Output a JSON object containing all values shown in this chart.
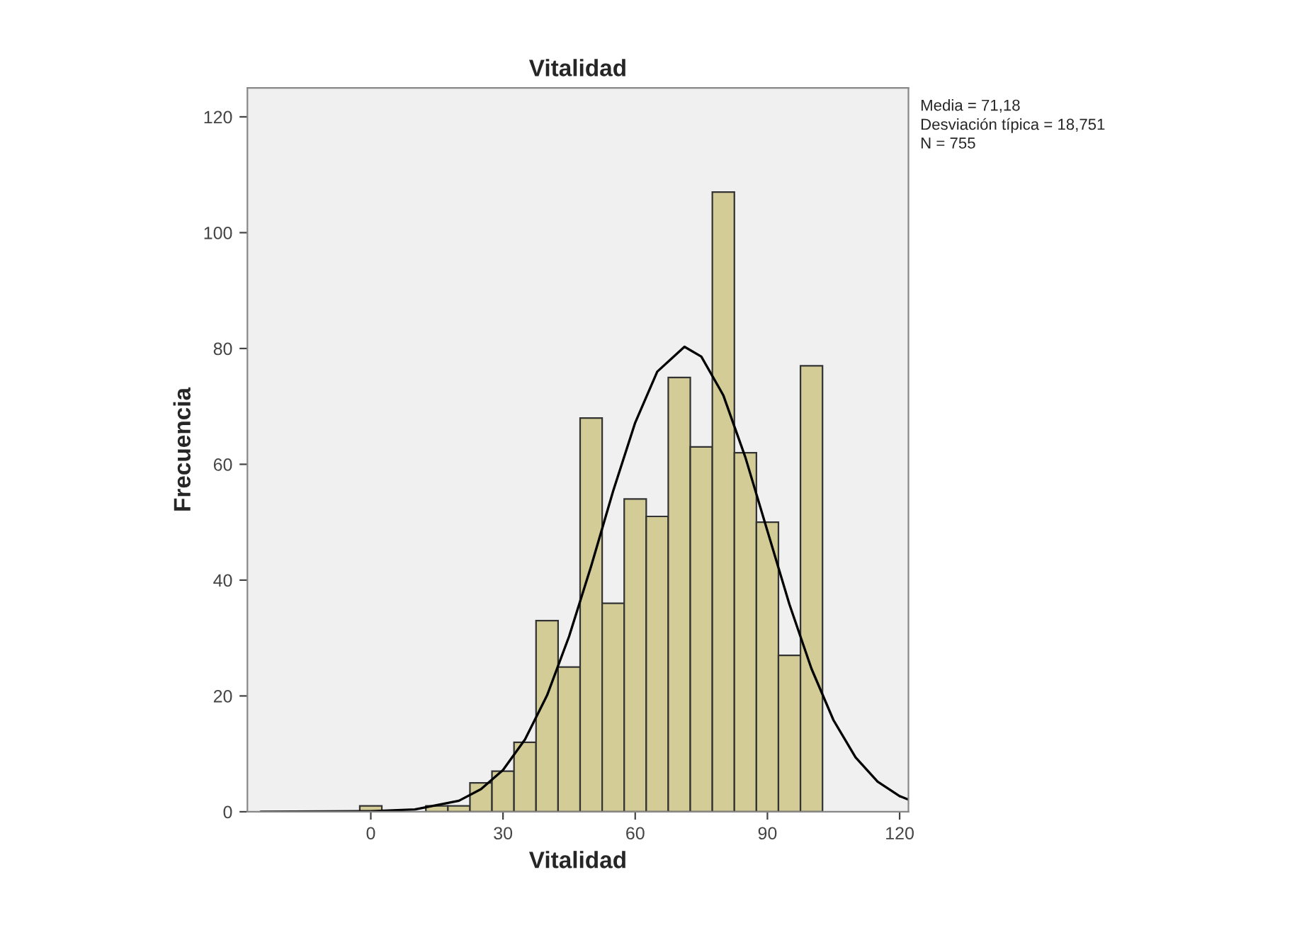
{
  "chart_data": {
    "type": "histogram",
    "title": "Vitalidad",
    "xlabel": "Vitalidad",
    "ylabel": "Frecuencia",
    "bins": [
      -2.5,
      2.5,
      7.5,
      12.5,
      17.5,
      22.5,
      27.5,
      32.5,
      37.5,
      42.5,
      47.5,
      52.5,
      57.5,
      62.5,
      67.5,
      72.5,
      77.5,
      82.5,
      87.5,
      92.5,
      97.5,
      102.5
    ],
    "values": [
      1,
      0,
      0,
      1,
      1,
      5,
      7,
      12,
      33,
      25,
      68,
      36,
      54,
      51,
      75,
      63,
      107,
      62,
      50,
      27,
      77
    ],
    "color": "#d3cc96",
    "series": [
      {
        "type": "line",
        "color": "#000000",
        "x": [
          -25,
          0,
          10,
          20,
          25,
          30,
          35,
          40,
          45,
          50,
          55,
          60,
          65,
          71.18,
          75,
          80,
          85,
          90,
          95,
          100,
          105,
          110,
          115,
          120,
          122
        ],
        "values": [
          0,
          0.1,
          0.4,
          1.9,
          3.9,
          7.2,
          12.5,
          20.1,
          30.3,
          42.4,
          55.4,
          67.2,
          76.0,
          80.3,
          78.6,
          71.9,
          61.2,
          48.5,
          35.8,
          24.7,
          15.8,
          9.4,
          5.2,
          2.7,
          2.1
        ]
      }
    ],
    "xlim": [
      -28,
      122
    ],
    "ylim": [
      0,
      125
    ],
    "xticks": [
      0,
      30,
      60,
      90,
      120
    ],
    "yticks": [
      0,
      20,
      40,
      60,
      80,
      100,
      120
    ],
    "grid": false,
    "annotations": [
      "Media = 71,18",
      "Desviación típica = 18,751",
      "N = 755"
    ]
  }
}
